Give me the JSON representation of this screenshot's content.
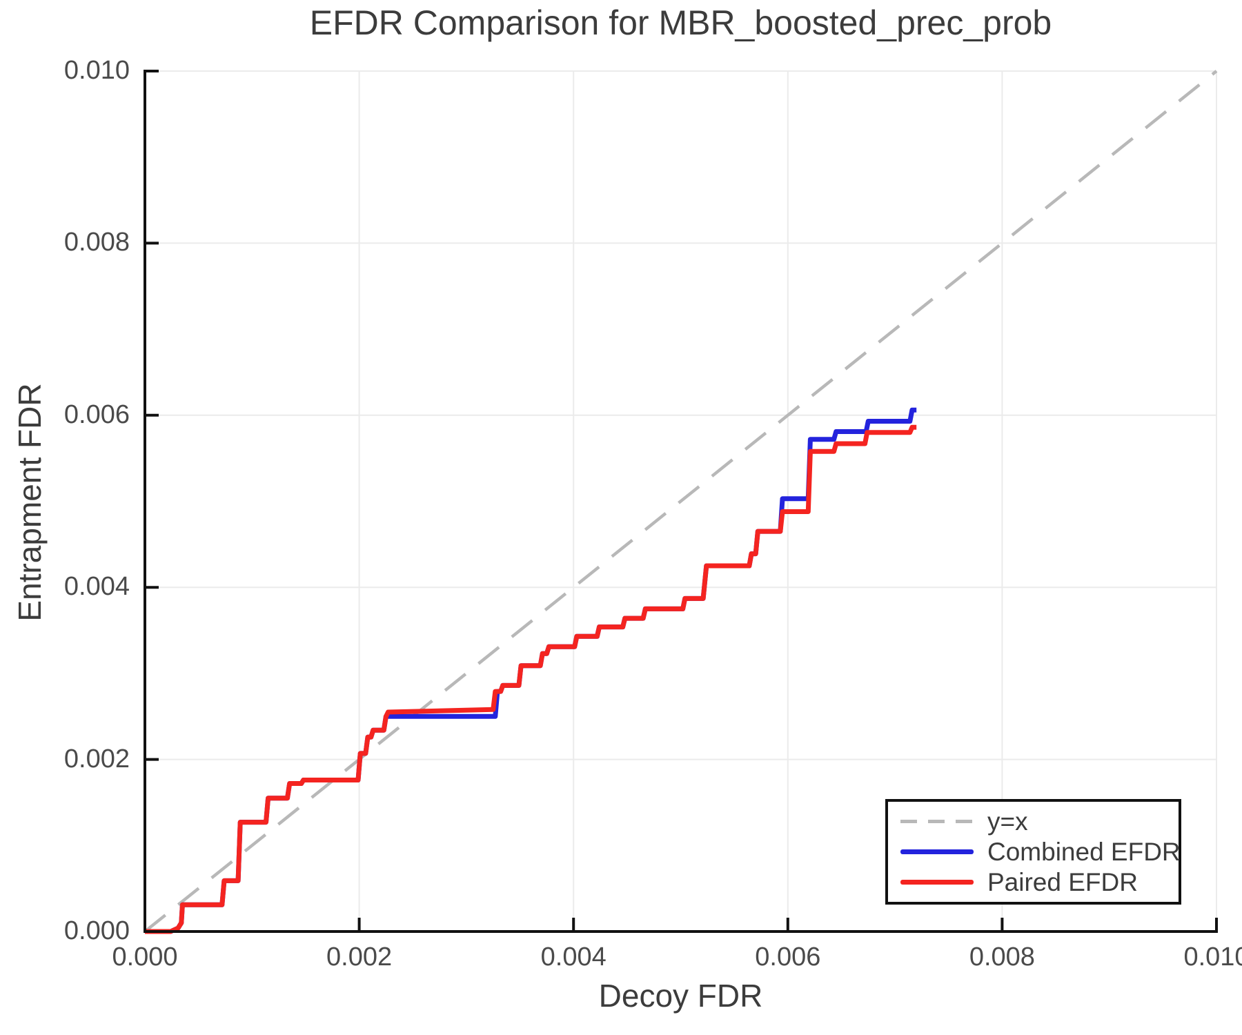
{
  "chart_data": {
    "type": "line",
    "title": "EFDR Comparison for MBR_boosted_prec_prob",
    "xlabel": "Decoy FDR",
    "ylabel": "Entrapment FDR",
    "xlim": [
      0.0,
      0.01
    ],
    "ylim": [
      0.0,
      0.01
    ],
    "x_tick_values": [
      0.0,
      0.002,
      0.004,
      0.006,
      0.008,
      0.01
    ],
    "y_tick_values": [
      0.0,
      0.002,
      0.004,
      0.006,
      0.008,
      0.01
    ],
    "x_tick_labels": [
      "0.000",
      "0.002",
      "0.004",
      "0.006",
      "0.008",
      "0.010"
    ],
    "y_tick_labels": [
      "0.000",
      "0.002",
      "0.004",
      "0.006",
      "0.008",
      "0.010"
    ],
    "grid": true,
    "colors": {
      "grid": "#ebebeb",
      "spine": "#111111",
      "reference": "#b8b8b8",
      "combined": "#2323dd",
      "paired": "#f42420",
      "text": "#3c3c3c"
    },
    "reference_line": {
      "label": "y=x",
      "from": [
        0.0,
        0.0
      ],
      "to": [
        0.01,
        0.01
      ],
      "style": "dashed"
    },
    "legend": {
      "position": "lower right",
      "entries": [
        {
          "label": "y=x",
          "color": "#b8b8b8",
          "style": "dashed"
        },
        {
          "label": "Combined EFDR",
          "color": "#2323dd",
          "style": "solid"
        },
        {
          "label": "Paired EFDR",
          "color": "#f42420",
          "style": "solid"
        }
      ]
    },
    "series": [
      {
        "name": "Combined EFDR",
        "color": "#2323dd",
        "points": [
          [
            0.0,
            0.0
          ],
          [
            0.00024,
            0.0
          ],
          [
            0.00031,
            4e-05
          ],
          [
            0.00034,
            0.0001
          ],
          [
            0.00035,
            0.00031
          ],
          [
            0.00072,
            0.00031
          ],
          [
            0.00074,
            0.00059
          ],
          [
            0.00087,
            0.00059
          ],
          [
            0.00089,
            0.00127
          ],
          [
            0.00113,
            0.00127
          ],
          [
            0.00115,
            0.00155
          ],
          [
            0.00133,
            0.00155
          ],
          [
            0.00135,
            0.00172
          ],
          [
            0.00146,
            0.00172
          ],
          [
            0.00148,
            0.00176
          ],
          [
            0.00199,
            0.00176
          ],
          [
            0.00201,
            0.00207
          ],
          [
            0.00206,
            0.00207
          ],
          [
            0.00208,
            0.00226
          ],
          [
            0.00211,
            0.00226
          ],
          [
            0.00213,
            0.00234
          ],
          [
            0.00223,
            0.00234
          ],
          [
            0.00225,
            0.0025
          ],
          [
            0.00327,
            0.0025
          ],
          [
            0.00329,
            0.00279
          ],
          [
            0.00332,
            0.00279
          ],
          [
            0.00334,
            0.00286
          ],
          [
            0.00349,
            0.00286
          ],
          [
            0.00351,
            0.00309
          ],
          [
            0.00369,
            0.00309
          ],
          [
            0.00371,
            0.00323
          ],
          [
            0.00375,
            0.00323
          ],
          [
            0.00377,
            0.00331
          ],
          [
            0.00401,
            0.00331
          ],
          [
            0.00403,
            0.00343
          ],
          [
            0.00422,
            0.00343
          ],
          [
            0.00424,
            0.00354
          ],
          [
            0.00446,
            0.00354
          ],
          [
            0.00448,
            0.00364
          ],
          [
            0.00465,
            0.00364
          ],
          [
            0.00467,
            0.00375
          ],
          [
            0.00502,
            0.00375
          ],
          [
            0.00504,
            0.00387
          ],
          [
            0.00521,
            0.00387
          ],
          [
            0.00524,
            0.00425
          ],
          [
            0.00564,
            0.00425
          ],
          [
            0.00566,
            0.00439
          ],
          [
            0.0057,
            0.00439
          ],
          [
            0.00572,
            0.00465
          ],
          [
            0.00593,
            0.00465
          ],
          [
            0.00595,
            0.00503
          ],
          [
            0.00619,
            0.00503
          ],
          [
            0.00621,
            0.00572
          ],
          [
            0.00643,
            0.00572
          ],
          [
            0.00645,
            0.00581
          ],
          [
            0.00673,
            0.00581
          ],
          [
            0.00675,
            0.00593
          ],
          [
            0.00714,
            0.00593
          ],
          [
            0.00716,
            0.00606
          ],
          [
            0.0072,
            0.00606
          ]
        ]
      },
      {
        "name": "Paired EFDR",
        "color": "#f42420",
        "points": [
          [
            0.0,
            0.0
          ],
          [
            0.00024,
            0.0
          ],
          [
            0.00031,
            4e-05
          ],
          [
            0.00034,
            0.0001
          ],
          [
            0.00035,
            0.00031
          ],
          [
            0.00072,
            0.00031
          ],
          [
            0.00074,
            0.00059
          ],
          [
            0.00087,
            0.00059
          ],
          [
            0.00089,
            0.00127
          ],
          [
            0.00113,
            0.00127
          ],
          [
            0.00115,
            0.00155
          ],
          [
            0.00133,
            0.00155
          ],
          [
            0.00135,
            0.00172
          ],
          [
            0.00146,
            0.00172
          ],
          [
            0.00148,
            0.00176
          ],
          [
            0.00199,
            0.00176
          ],
          [
            0.00201,
            0.00207
          ],
          [
            0.00206,
            0.00207
          ],
          [
            0.00208,
            0.00226
          ],
          [
            0.00211,
            0.00226
          ],
          [
            0.00213,
            0.00234
          ],
          [
            0.00223,
            0.00234
          ],
          [
            0.00225,
            0.0025
          ],
          [
            0.00227,
            0.00255
          ],
          [
            0.00325,
            0.00258
          ],
          [
            0.00327,
            0.00279
          ],
          [
            0.00332,
            0.00279
          ],
          [
            0.00334,
            0.00286
          ],
          [
            0.00349,
            0.00286
          ],
          [
            0.00351,
            0.00309
          ],
          [
            0.00369,
            0.00309
          ],
          [
            0.00371,
            0.00323
          ],
          [
            0.00375,
            0.00323
          ],
          [
            0.00377,
            0.00331
          ],
          [
            0.00401,
            0.00331
          ],
          [
            0.00403,
            0.00343
          ],
          [
            0.00422,
            0.00343
          ],
          [
            0.00424,
            0.00354
          ],
          [
            0.00446,
            0.00354
          ],
          [
            0.00448,
            0.00364
          ],
          [
            0.00465,
            0.00364
          ],
          [
            0.00467,
            0.00375
          ],
          [
            0.00502,
            0.00375
          ],
          [
            0.00504,
            0.00387
          ],
          [
            0.00521,
            0.00387
          ],
          [
            0.00524,
            0.00425
          ],
          [
            0.00564,
            0.00425
          ],
          [
            0.00566,
            0.00439
          ],
          [
            0.0057,
            0.00439
          ],
          [
            0.00572,
            0.00465
          ],
          [
            0.00593,
            0.00465
          ],
          [
            0.00595,
            0.00488
          ],
          [
            0.00619,
            0.00488
          ],
          [
            0.00621,
            0.00558
          ],
          [
            0.00643,
            0.00558
          ],
          [
            0.00645,
            0.00567
          ],
          [
            0.00672,
            0.00567
          ],
          [
            0.00674,
            0.0058
          ],
          [
            0.00714,
            0.0058
          ],
          [
            0.00716,
            0.00586
          ],
          [
            0.0072,
            0.00586
          ]
        ]
      }
    ]
  }
}
